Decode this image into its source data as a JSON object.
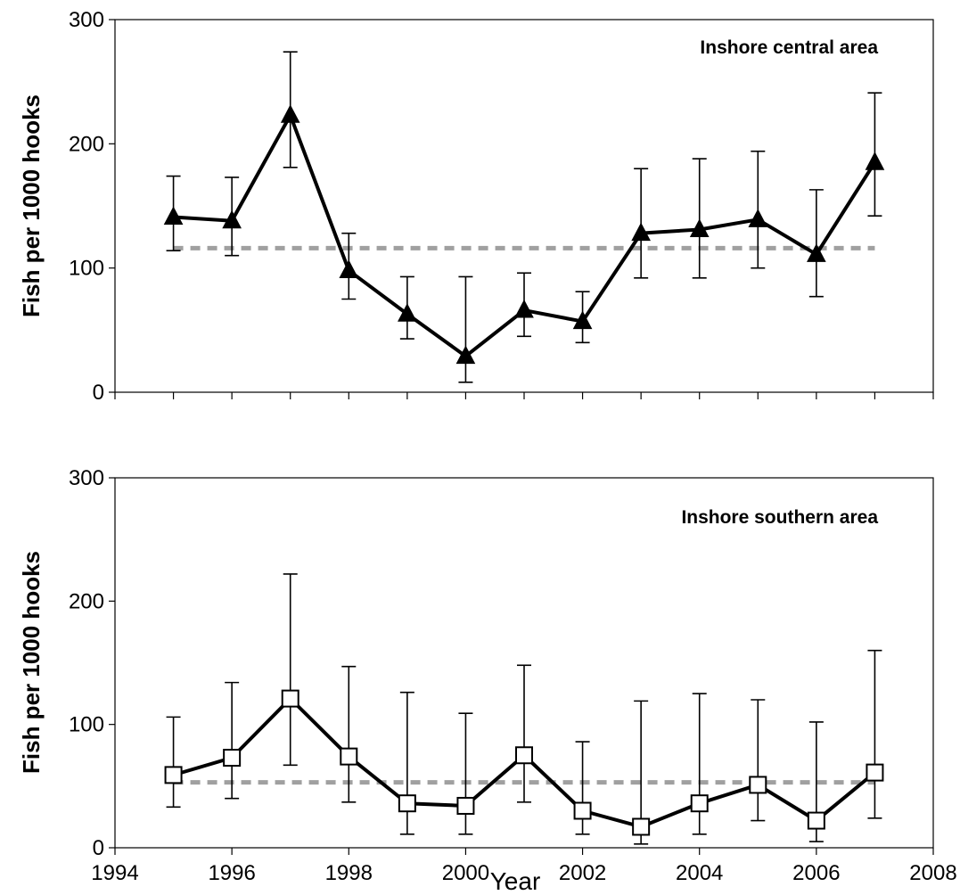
{
  "chart_data": [
    {
      "type": "line",
      "title": "Inshore central area",
      "ylabel": "Fish per 1000 hooks",
      "xlabel": "",
      "xlim": [
        1994,
        2008
      ],
      "ylim": [
        0,
        300
      ],
      "yticks": [
        0,
        100,
        200,
        300
      ],
      "ytick_labels": [
        "0",
        "100",
        "200",
        "300"
      ],
      "x_minor_ticks": [
        1994,
        1995,
        1996,
        1997,
        1998,
        1999,
        2000,
        2001,
        2002,
        2003,
        2004,
        2005,
        2006,
        2007,
        2008
      ],
      "grid": false,
      "legend": "none",
      "marker": "filled-triangle",
      "series": [
        {
          "x": [
            1995,
            1996,
            1997,
            1998,
            1999,
            2000,
            2001,
            2002,
            2003,
            2004,
            2005,
            2006,
            2007
          ],
          "values": [
            141,
            138,
            223,
            98,
            63,
            29,
            66,
            57,
            128,
            131,
            139,
            111,
            185
          ],
          "err_low": [
            114,
            110,
            181,
            75,
            43,
            8,
            45,
            40,
            92,
            92,
            100,
            77,
            142
          ],
          "err_high": [
            174,
            173,
            274,
            128,
            93,
            93,
            96,
            81,
            180,
            188,
            194,
            163,
            241
          ]
        }
      ],
      "reference_line": {
        "value": 116,
        "style": "dashed",
        "color": "#a0a0a0"
      }
    },
    {
      "type": "line",
      "title": "Inshore southern area",
      "ylabel": "Fish per 1000 hooks",
      "xlabel": "Year",
      "xlim": [
        1994,
        2008
      ],
      "ylim": [
        0,
        300
      ],
      "yticks": [
        0,
        100,
        200,
        300
      ],
      "ytick_labels": [
        "0",
        "100",
        "200",
        "300"
      ],
      "xticks": [
        1994,
        1996,
        1998,
        2000,
        2002,
        2004,
        2006,
        2008
      ],
      "xtick_labels": [
        "1994",
        "1996",
        "1998",
        "2000",
        "2002",
        "2004",
        "2006",
        "2008"
      ],
      "grid": false,
      "legend": "none",
      "marker": "open-square",
      "series": [
        {
          "x": [
            1995,
            1996,
            1997,
            1998,
            1999,
            2000,
            2001,
            2002,
            2003,
            2004,
            2005,
            2006,
            2007
          ],
          "values": [
            59,
            73,
            121,
            74,
            36,
            34,
            75,
            30,
            17,
            36,
            51,
            22,
            61
          ],
          "err_low": [
            33,
            40,
            67,
            37,
            11,
            11,
            37,
            11,
            3,
            11,
            22,
            5,
            24
          ],
          "err_high": [
            106,
            134,
            222,
            147,
            126,
            109,
            148,
            86,
            119,
            125,
            120,
            102,
            160
          ]
        }
      ],
      "reference_line": {
        "value": 53,
        "style": "dashed",
        "color": "#a0a0a0"
      }
    }
  ]
}
